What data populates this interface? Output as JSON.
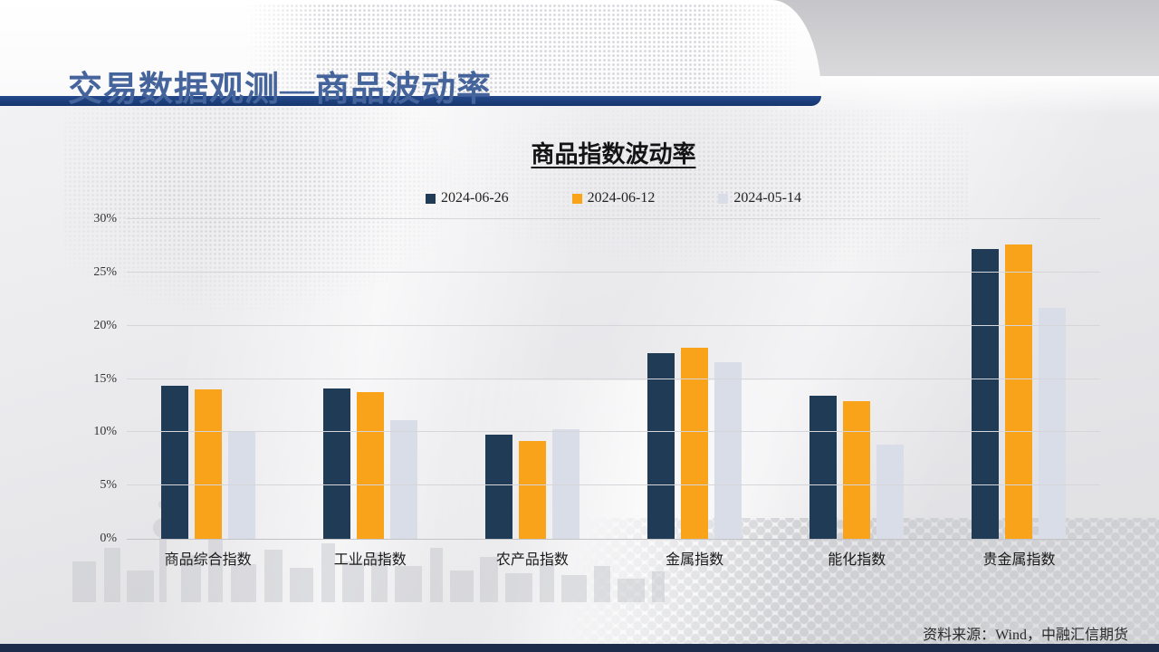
{
  "slide": {
    "header_title": "交易数据观测—商品波动率",
    "source_note": "资料来源：Wind，中融汇信期货"
  },
  "chart_data": {
    "type": "bar",
    "title": "商品指数波动率",
    "categories": [
      "商品综合指数",
      "工业品指数",
      "农产品指数",
      "金属指数",
      "能化指数",
      "贵金属指数"
    ],
    "series": [
      {
        "name": "2024-06-26",
        "color": "#203b55",
        "values": [
          14.4,
          14.1,
          9.8,
          17.4,
          13.4,
          27.2
        ]
      },
      {
        "name": "2024-06-12",
        "color": "#f9a31b",
        "values": [
          14.0,
          13.8,
          9.2,
          17.9,
          12.9,
          27.6
        ]
      },
      {
        "name": "2024-05-14",
        "color": "#d8dde7",
        "values": [
          10.0,
          11.1,
          10.3,
          16.6,
          8.8,
          21.7
        ]
      }
    ],
    "xlabel": "",
    "ylabel": "",
    "ylim": [
      0,
      30
    ],
    "y_tick_step": 5,
    "y_tick_labels": [
      "0%",
      "5%",
      "10%",
      "15%",
      "20%",
      "25%",
      "30%"
    ],
    "grid": true,
    "legend_position": "top-center"
  },
  "colors": {
    "page_title": "#45649c",
    "header_bar": "#16356c",
    "bottom_strip": "#1d2c4b"
  }
}
